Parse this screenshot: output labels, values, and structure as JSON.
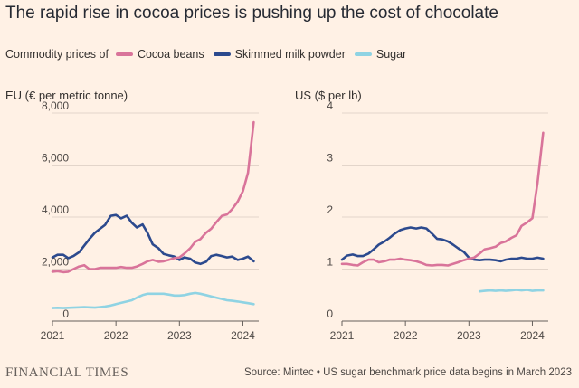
{
  "title": "The rapid rise in cocoa prices is pushing up the cost of chocolate",
  "legend": {
    "lead": "Commodity prices of",
    "items": [
      {
        "label": "Cocoa beans",
        "color": "#d9749a"
      },
      {
        "label": "Skimmed milk powder",
        "color": "#2c4a8e"
      },
      {
        "label": "Sugar",
        "color": "#8fd3e3"
      }
    ]
  },
  "footer": {
    "logo": "FINANCIAL TIMES",
    "source": "Source: Mintec • US sugar benchmark price data begins in March 2023"
  },
  "chart_data": [
    {
      "type": "line",
      "ylabel": "EU (€ per metric tonne)",
      "xlim": [
        2021,
        2024.25
      ],
      "ylim": [
        0,
        8000
      ],
      "yticks": [
        0,
        2000,
        4000,
        6000,
        8000
      ],
      "ytick_labels": [
        "0",
        "2,000",
        "4,000",
        "6,000",
        "8,000"
      ],
      "xticks": [
        2021,
        2022,
        2023,
        2024
      ],
      "xtick_labels": [
        "2021",
        "2022",
        "2023",
        "2024"
      ],
      "series": [
        {
          "name": "Skimmed milk powder",
          "color": "#2c4a8e",
          "x": [
            2021.0,
            2021.08,
            2021.17,
            2021.25,
            2021.33,
            2021.42,
            2021.5,
            2021.58,
            2021.67,
            2021.75,
            2021.83,
            2021.92,
            2022.0,
            2022.08,
            2022.17,
            2022.25,
            2022.33,
            2022.42,
            2022.5,
            2022.58,
            2022.67,
            2022.75,
            2022.83,
            2022.92,
            2023.0,
            2023.08,
            2023.17,
            2023.25,
            2023.33,
            2023.42,
            2023.5,
            2023.58,
            2023.67,
            2023.75,
            2023.83,
            2023.92,
            2024.0,
            2024.08,
            2024.17
          ],
          "values": [
            2450,
            2550,
            2550,
            2420,
            2500,
            2650,
            2900,
            3150,
            3400,
            3550,
            3700,
            4050,
            4080,
            3950,
            4050,
            3780,
            3600,
            3720,
            3380,
            2950,
            2800,
            2580,
            2530,
            2480,
            2350,
            2450,
            2400,
            2250,
            2200,
            2280,
            2500,
            2550,
            2500,
            2450,
            2480,
            2350,
            2400,
            2480,
            2300
          ]
        },
        {
          "name": "Cocoa beans",
          "color": "#d9749a",
          "x": [
            2021.0,
            2021.08,
            2021.17,
            2021.25,
            2021.33,
            2021.42,
            2021.5,
            2021.58,
            2021.67,
            2021.75,
            2021.83,
            2021.92,
            2022.0,
            2022.08,
            2022.17,
            2022.25,
            2022.33,
            2022.42,
            2022.5,
            2022.58,
            2022.67,
            2022.75,
            2022.83,
            2022.92,
            2023.0,
            2023.08,
            2023.17,
            2023.25,
            2023.33,
            2023.42,
            2023.5,
            2023.58,
            2023.67,
            2023.75,
            2023.83,
            2023.92,
            2024.0,
            2024.08,
            2024.17
          ],
          "values": [
            1900,
            1920,
            1880,
            1900,
            2000,
            2100,
            2150,
            2000,
            2000,
            2050,
            2050,
            2050,
            2050,
            2080,
            2050,
            2050,
            2100,
            2200,
            2300,
            2350,
            2280,
            2300,
            2350,
            2420,
            2450,
            2600,
            2800,
            3050,
            3150,
            3400,
            3550,
            3800,
            4050,
            4100,
            4300,
            4600,
            5000,
            5700,
            7650
          ]
        },
        {
          "name": "Sugar",
          "color": "#8fd3e3",
          "x": [
            2021.0,
            2021.08,
            2021.17,
            2021.25,
            2021.33,
            2021.42,
            2021.5,
            2021.58,
            2021.67,
            2021.75,
            2021.83,
            2021.92,
            2022.0,
            2022.08,
            2022.17,
            2022.25,
            2022.33,
            2022.42,
            2022.5,
            2022.58,
            2022.67,
            2022.75,
            2022.83,
            2022.92,
            2023.0,
            2023.08,
            2023.17,
            2023.25,
            2023.33,
            2023.42,
            2023.5,
            2023.58,
            2023.67,
            2023.75,
            2023.83,
            2023.92,
            2024.0,
            2024.08,
            2024.17
          ],
          "values": [
            500,
            510,
            500,
            510,
            520,
            530,
            540,
            530,
            520,
            540,
            560,
            600,
            650,
            700,
            750,
            800,
            900,
            1000,
            1050,
            1050,
            1050,
            1050,
            1020,
            980,
            980,
            1000,
            1050,
            1080,
            1050,
            1000,
            950,
            900,
            850,
            800,
            780,
            750,
            720,
            690,
            650
          ]
        }
      ]
    },
    {
      "type": "line",
      "ylabel": "US ($ per lb)",
      "xlim": [
        2021,
        2024.25
      ],
      "ylim": [
        0,
        4
      ],
      "yticks": [
        0,
        1,
        2,
        3,
        4
      ],
      "ytick_labels": [
        "0",
        "1",
        "2",
        "3",
        "4"
      ],
      "xticks": [
        2021,
        2022,
        2023,
        2024
      ],
      "xtick_labels": [
        "2021",
        "2022",
        "2023",
        "2024"
      ],
      "series": [
        {
          "name": "Skimmed milk powder",
          "color": "#2c4a8e",
          "x": [
            2021.0,
            2021.08,
            2021.17,
            2021.25,
            2021.33,
            2021.42,
            2021.5,
            2021.58,
            2021.67,
            2021.75,
            2021.83,
            2021.92,
            2022.0,
            2022.08,
            2022.17,
            2022.25,
            2022.33,
            2022.42,
            2022.5,
            2022.58,
            2022.67,
            2022.75,
            2022.83,
            2022.92,
            2023.0,
            2023.08,
            2023.17,
            2023.25,
            2023.33,
            2023.42,
            2023.5,
            2023.58,
            2023.67,
            2023.75,
            2023.83,
            2023.92,
            2024.0,
            2024.08,
            2024.17
          ],
          "values": [
            1.18,
            1.26,
            1.28,
            1.25,
            1.25,
            1.3,
            1.38,
            1.47,
            1.53,
            1.6,
            1.68,
            1.75,
            1.78,
            1.8,
            1.78,
            1.8,
            1.78,
            1.68,
            1.58,
            1.57,
            1.53,
            1.47,
            1.4,
            1.33,
            1.22,
            1.18,
            1.17,
            1.18,
            1.18,
            1.17,
            1.15,
            1.18,
            1.2,
            1.2,
            1.22,
            1.2,
            1.2,
            1.22,
            1.2
          ]
        },
        {
          "name": "Cocoa beans",
          "color": "#d9749a",
          "x": [
            2021.0,
            2021.08,
            2021.17,
            2021.25,
            2021.33,
            2021.42,
            2021.5,
            2021.58,
            2021.67,
            2021.75,
            2021.83,
            2021.92,
            2022.0,
            2022.08,
            2022.17,
            2022.25,
            2022.33,
            2022.42,
            2022.5,
            2022.58,
            2022.67,
            2022.75,
            2022.83,
            2022.92,
            2023.0,
            2023.08,
            2023.17,
            2023.25,
            2023.33,
            2023.42,
            2023.5,
            2023.58,
            2023.67,
            2023.75,
            2023.83,
            2023.92,
            2024.0,
            2024.08,
            2024.17
          ],
          "values": [
            1.1,
            1.1,
            1.08,
            1.07,
            1.13,
            1.18,
            1.18,
            1.13,
            1.15,
            1.18,
            1.18,
            1.2,
            1.18,
            1.17,
            1.15,
            1.12,
            1.08,
            1.07,
            1.08,
            1.08,
            1.07,
            1.1,
            1.13,
            1.17,
            1.2,
            1.22,
            1.3,
            1.38,
            1.4,
            1.43,
            1.5,
            1.53,
            1.6,
            1.65,
            1.83,
            1.9,
            1.98,
            2.65,
            3.62
          ]
        },
        {
          "name": "Sugar",
          "color": "#8fd3e3",
          "x": [
            2023.17,
            2023.25,
            2023.33,
            2023.42,
            2023.5,
            2023.58,
            2023.67,
            2023.75,
            2023.83,
            2023.92,
            2024.0,
            2024.08,
            2024.17
          ],
          "values": [
            0.57,
            0.58,
            0.59,
            0.58,
            0.59,
            0.58,
            0.59,
            0.6,
            0.59,
            0.6,
            0.58,
            0.59,
            0.59
          ]
        }
      ]
    }
  ]
}
